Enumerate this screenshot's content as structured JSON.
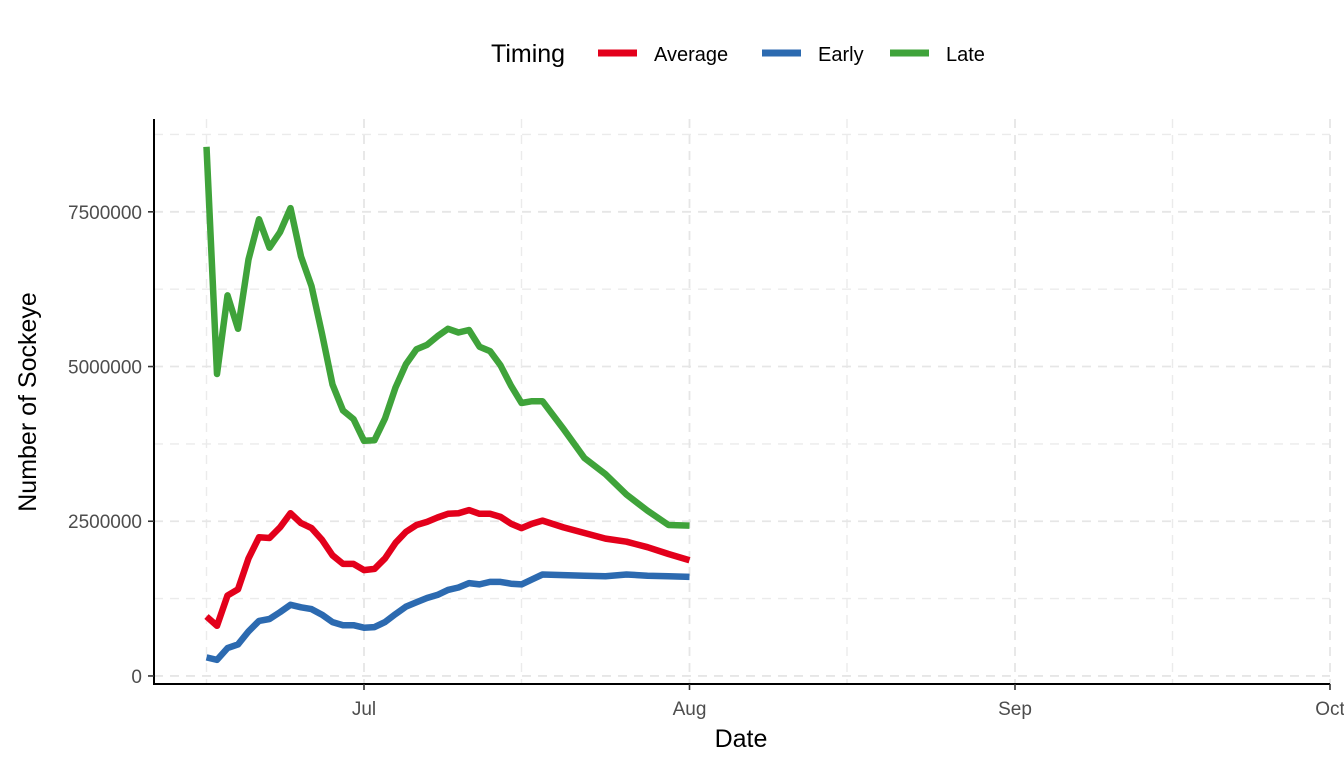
{
  "chart_data": {
    "type": "line",
    "xlabel": "Date",
    "ylabel": "Number of Sockeye",
    "x_tick_labels": [
      "Jul",
      "Aug",
      "Sep",
      "Oct"
    ],
    "y_tick_labels": [
      "0",
      "2500000",
      "5000000",
      "7500000"
    ],
    "y_ticks": [
      0,
      2500000,
      5000000,
      7500000
    ],
    "xlim": [
      "2023-06-11",
      "2023-10-01"
    ],
    "ylim": [
      -130000,
      9000000
    ],
    "grid": true,
    "legend": {
      "title": "Timing",
      "position": "top"
    },
    "x": [
      "2023-06-16",
      "2023-06-17",
      "2023-06-18",
      "2023-06-19",
      "2023-06-20",
      "2023-06-21",
      "2023-06-22",
      "2023-06-23",
      "2023-06-24",
      "2023-06-25",
      "2023-06-26",
      "2023-06-27",
      "2023-06-28",
      "2023-06-29",
      "2023-06-30",
      "2023-07-01",
      "2023-07-02",
      "2023-07-03",
      "2023-07-04",
      "2023-07-05",
      "2023-07-06",
      "2023-07-07",
      "2023-07-08",
      "2023-07-09",
      "2023-07-10",
      "2023-07-11",
      "2023-07-12",
      "2023-07-13",
      "2023-07-14",
      "2023-07-15",
      "2023-07-16",
      "2023-07-17",
      "2023-07-18",
      "2023-07-20",
      "2023-07-22",
      "2023-07-24",
      "2023-07-26",
      "2023-07-28",
      "2023-07-30",
      "2023-08-01"
    ],
    "series": [
      {
        "name": "Average",
        "color": "#e3001b",
        "values": [
          960000,
          810000,
          1300000,
          1400000,
          1900000,
          2240000,
          2230000,
          2400000,
          2630000,
          2470000,
          2390000,
          2200000,
          1950000,
          1810000,
          1810000,
          1710000,
          1730000,
          1900000,
          2150000,
          2330000,
          2440000,
          2490000,
          2560000,
          2620000,
          2630000,
          2680000,
          2620000,
          2620000,
          2570000,
          2460000,
          2390000,
          2460000,
          2510000,
          2400000,
          2310000,
          2220000,
          2170000,
          2080000,
          1970000,
          1870000
        ]
      },
      {
        "name": "Early",
        "color": "#2c6ab0",
        "values": [
          300000,
          260000,
          450000,
          510000,
          720000,
          890000,
          920000,
          1030000,
          1150000,
          1110000,
          1080000,
          990000,
          870000,
          820000,
          820000,
          780000,
          790000,
          870000,
          1000000,
          1120000,
          1190000,
          1260000,
          1310000,
          1390000,
          1430000,
          1500000,
          1480000,
          1520000,
          1520000,
          1490000,
          1480000,
          1560000,
          1640000,
          1630000,
          1620000,
          1610000,
          1640000,
          1620000,
          1610000,
          1600000
        ]
      },
      {
        "name": "Late",
        "color": "#3fa33a",
        "values": [
          8550000,
          4880000,
          6150000,
          5610000,
          6730000,
          7380000,
          6920000,
          7170000,
          7560000,
          6780000,
          6300000,
          5530000,
          4710000,
          4290000,
          4150000,
          3800000,
          3810000,
          4160000,
          4660000,
          5040000,
          5280000,
          5350000,
          5490000,
          5610000,
          5550000,
          5590000,
          5320000,
          5250000,
          5020000,
          4690000,
          4410000,
          4440000,
          4440000,
          3990000,
          3520000,
          3260000,
          2930000,
          2670000,
          2440000,
          2430000
        ]
      }
    ]
  }
}
